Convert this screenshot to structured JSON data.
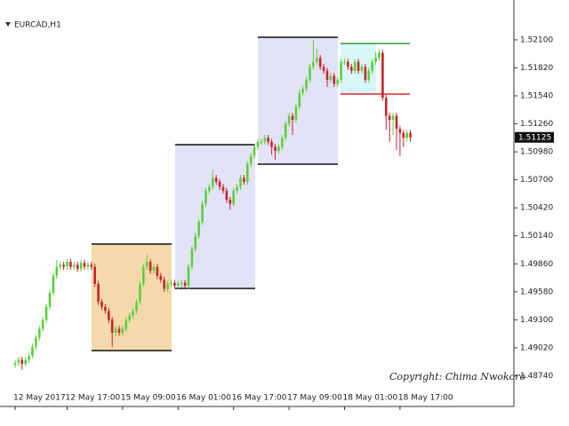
{
  "chart_data": {
    "type": "candlestick",
    "title": "EURCAD,H1",
    "annotation": "Copyright: Chima Nwokoro",
    "up_color": "#5ccf3c",
    "down_color": "#c8232c",
    "ylim": [
      1.4846,
      1.5241
    ],
    "yticks": [
      {
        "value": 1.521,
        "label": "1.52100"
      },
      {
        "value": 1.5182,
        "label": "1.51820"
      },
      {
        "value": 1.5154,
        "label": "1.51540"
      },
      {
        "value": 1.5126,
        "label": "1.51260"
      },
      {
        "value": 1.5098,
        "label": "1.50980"
      },
      {
        "value": 1.507,
        "label": "1.50700"
      },
      {
        "value": 1.5042,
        "label": "1.50420"
      },
      {
        "value": 1.5014,
        "label": "1.50140"
      },
      {
        "value": 1.4986,
        "label": "1.49860"
      },
      {
        "value": 1.4958,
        "label": "1.49580"
      },
      {
        "value": 1.493,
        "label": "1.49300"
      },
      {
        "value": 1.4902,
        "label": "1.49020"
      },
      {
        "value": 1.4874,
        "label": "1.48740"
      }
    ],
    "categories": [
      "12 May 2017",
      null,
      null,
      null,
      null,
      null,
      null,
      null,
      null,
      null,
      null,
      null,
      null,
      null,
      null,
      "12 May 17:00",
      null,
      null,
      null,
      null,
      null,
      null,
      null,
      null,
      null,
      null,
      null,
      null,
      null,
      null,
      null,
      "15 May 09:00",
      null,
      null,
      null,
      null,
      null,
      null,
      null,
      null,
      null,
      null,
      null,
      null,
      null,
      null,
      null,
      "16 May 01:00",
      null,
      null,
      null,
      null,
      null,
      null,
      null,
      null,
      null,
      null,
      null,
      null,
      null,
      null,
      null,
      "16 May 17:00",
      null,
      null,
      null,
      null,
      null,
      null,
      null,
      null,
      null,
      null,
      null,
      null,
      null,
      null,
      null,
      "17 May 09:00",
      null,
      null,
      null,
      null,
      null,
      null,
      null,
      null,
      null,
      null,
      null,
      null,
      null,
      null,
      null,
      "18 May 01:00",
      null,
      null,
      null,
      null,
      null,
      null,
      null,
      null,
      null,
      null,
      null,
      null,
      null,
      null,
      null,
      "18 May 17:00",
      null,
      null,
      null
    ],
    "open": [
      1.4885,
      1.4887,
      1.489,
      1.4886,
      1.489,
      1.4894,
      1.4903,
      1.4912,
      1.4921,
      1.493,
      1.4943,
      1.4957,
      1.4974,
      1.4983,
      1.4985,
      1.4983,
      1.4988,
      1.4983,
      1.4985,
      1.4981,
      1.4987,
      1.4983,
      1.4985,
      1.4983,
      1.4966,
      1.4948,
      1.4943,
      1.4939,
      1.493,
      1.4917,
      1.4921,
      1.4917,
      1.4921,
      1.493,
      1.4934,
      1.4939,
      1.4948,
      1.4966,
      1.4983,
      1.4988,
      1.4979,
      1.4983,
      1.4974,
      1.497,
      1.4961,
      1.4966,
      1.4967,
      1.4964,
      1.4966,
      1.4967,
      1.4964,
      1.4983,
      1.5001,
      1.5014,
      1.5028,
      1.5046,
      1.5059,
      1.5063,
      1.5072,
      1.5068,
      1.5063,
      1.5059,
      1.505,
      1.5046,
      1.5059,
      1.5063,
      1.5072,
      1.5068,
      1.5086,
      1.5094,
      1.5103,
      1.5108,
      1.5108,
      1.5112,
      1.5108,
      1.5103,
      1.5099,
      1.5103,
      1.5112,
      1.5126,
      1.5134,
      1.513,
      1.5143,
      1.5157,
      1.5161,
      1.517,
      1.5183,
      1.5188,
      1.5192,
      1.5183,
      1.5179,
      1.517,
      1.5174,
      1.5166,
      1.517,
      1.5188,
      1.5188,
      1.5183,
      1.5179,
      1.5188,
      1.5179,
      1.5183,
      1.517,
      1.5179,
      1.5188,
      1.5192,
      1.5197,
      1.5152,
      1.5134,
      1.513,
      1.5134,
      1.5121,
      1.5117,
      1.5112,
      1.5117
    ],
    "high": [
      1.489,
      1.4893,
      1.4893,
      1.4893,
      1.4897,
      1.4906,
      1.4915,
      1.4924,
      1.4933,
      1.4946,
      1.496,
      1.4977,
      1.499,
      1.4988,
      1.4988,
      1.4991,
      1.4991,
      1.4988,
      1.4988,
      1.499,
      1.499,
      1.4988,
      1.4988,
      1.4986,
      1.4969,
      1.4951,
      1.4946,
      1.4942,
      1.4933,
      1.4924,
      1.4924,
      1.4924,
      1.4933,
      1.4937,
      1.4942,
      1.4951,
      1.4969,
      1.4986,
      1.4995,
      1.4991,
      1.4986,
      1.4986,
      1.4977,
      1.4973,
      1.4969,
      1.497,
      1.497,
      1.4969,
      1.497,
      1.497,
      1.4986,
      1.5004,
      1.5017,
      1.5031,
      1.5049,
      1.5062,
      1.5066,
      1.508,
      1.5075,
      1.5071,
      1.5066,
      1.5062,
      1.5053,
      1.5062,
      1.5066,
      1.5075,
      1.5075,
      1.5089,
      1.5097,
      1.5106,
      1.5111,
      1.5111,
      1.5115,
      1.5115,
      1.5111,
      1.5106,
      1.5106,
      1.5115,
      1.5129,
      1.5137,
      1.5137,
      1.5146,
      1.516,
      1.5164,
      1.5173,
      1.5186,
      1.521,
      1.5201,
      1.5195,
      1.5186,
      1.5182,
      1.5177,
      1.5177,
      1.5173,
      1.5191,
      1.5191,
      1.5191,
      1.5186,
      1.5191,
      1.5191,
      1.5186,
      1.5186,
      1.5182,
      1.5191,
      1.5198,
      1.52,
      1.52,
      1.5155,
      1.5137,
      1.5137,
      1.5137,
      1.5124,
      1.512,
      1.512,
      1.512
    ],
    "low": [
      1.4882,
      1.4884,
      1.488,
      1.4883,
      1.4887,
      1.4891,
      1.49,
      1.4909,
      1.4918,
      1.4927,
      1.494,
      1.4954,
      1.4971,
      1.498,
      1.498,
      1.498,
      1.498,
      1.498,
      1.4978,
      1.4978,
      1.498,
      1.498,
      1.498,
      1.4963,
      1.4945,
      1.494,
      1.4936,
      1.4927,
      1.4903,
      1.4914,
      1.4914,
      1.4914,
      1.4918,
      1.4927,
      1.4931,
      1.4936,
      1.4945,
      1.4963,
      1.498,
      1.4976,
      1.4976,
      1.4971,
      1.4967,
      1.4958,
      1.4958,
      1.4963,
      1.4961,
      1.4961,
      1.4963,
      1.4961,
      1.4961,
      1.498,
      1.4998,
      1.5011,
      1.5025,
      1.5043,
      1.5056,
      1.506,
      1.5065,
      1.506,
      1.5056,
      1.5047,
      1.504,
      1.5043,
      1.5056,
      1.506,
      1.5065,
      1.5065,
      1.5083,
      1.5091,
      1.51,
      1.5105,
      1.5105,
      1.5105,
      1.5095,
      1.509,
      1.5096,
      1.51,
      1.5109,
      1.5123,
      1.5115,
      1.5127,
      1.514,
      1.5154,
      1.5158,
      1.5167,
      1.518,
      1.5185,
      1.518,
      1.5176,
      1.5163,
      1.5167,
      1.5163,
      1.5163,
      1.5167,
      1.5185,
      1.518,
      1.5176,
      1.5176,
      1.5176,
      1.5176,
      1.5167,
      1.5167,
      1.5176,
      1.5185,
      1.5189,
      1.5149,
      1.512,
      1.5108,
      1.5115,
      1.51,
      1.5094,
      1.5103,
      1.5108,
      1.5108
    ],
    "close": [
      1.4887,
      1.489,
      1.4886,
      1.489,
      1.4894,
      1.4903,
      1.4912,
      1.4921,
      1.493,
      1.4943,
      1.4957,
      1.4974,
      1.4983,
      1.4985,
      1.4983,
      1.4988,
      1.4983,
      1.4985,
      1.4981,
      1.4987,
      1.4983,
      1.4985,
      1.4983,
      1.4966,
      1.4948,
      1.4943,
      1.4939,
      1.493,
      1.4917,
      1.4921,
      1.4917,
      1.4921,
      1.493,
      1.4934,
      1.4939,
      1.4948,
      1.4966,
      1.4983,
      1.4988,
      1.4979,
      1.4983,
      1.4974,
      1.497,
      1.4961,
      1.4966,
      1.4967,
      1.4964,
      1.4966,
      1.4967,
      1.4964,
      1.4983,
      1.5001,
      1.5014,
      1.5028,
      1.5046,
      1.5059,
      1.5063,
      1.5072,
      1.5068,
      1.5063,
      1.5059,
      1.505,
      1.5046,
      1.5059,
      1.5063,
      1.5072,
      1.5068,
      1.5086,
      1.5094,
      1.5103,
      1.5108,
      1.5108,
      1.5112,
      1.5108,
      1.5103,
      1.5099,
      1.5103,
      1.5112,
      1.5126,
      1.5134,
      1.513,
      1.5143,
      1.5157,
      1.5161,
      1.517,
      1.5183,
      1.5188,
      1.5192,
      1.5183,
      1.5179,
      1.517,
      1.5174,
      1.5166,
      1.517,
      1.5188,
      1.5188,
      1.5183,
      1.5179,
      1.5188,
      1.5179,
      1.5183,
      1.517,
      1.5179,
      1.5188,
      1.5192,
      1.5197,
      1.5152,
      1.5134,
      1.513,
      1.5134,
      1.5121,
      1.5117,
      1.5112,
      1.5117,
      1.51125
    ]
  }
}
